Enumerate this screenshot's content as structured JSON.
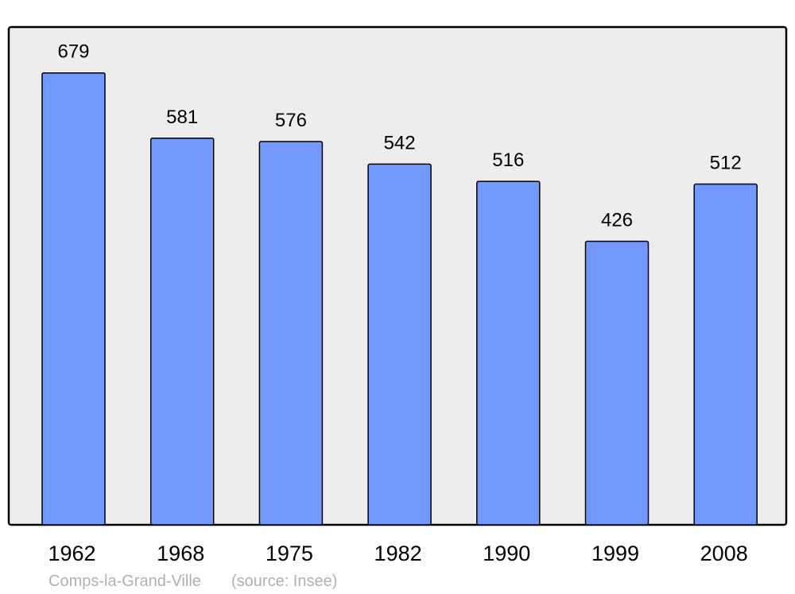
{
  "chart_data": {
    "type": "bar",
    "categories": [
      "1962",
      "1968",
      "1975",
      "1982",
      "1990",
      "1999",
      "2008"
    ],
    "values": [
      679,
      581,
      576,
      542,
      516,
      426,
      512
    ],
    "ylim": [
      0,
      748
    ],
    "grid": false,
    "data_labels": true,
    "colors": {
      "bar": "#7399FF",
      "plot_background": "#EDEDED",
      "border": "#000000",
      "footer_text": "#B0B0B0"
    }
  },
  "footer": {
    "place": "Comps-la-Grand-Ville",
    "source": "(source: Insee)"
  }
}
